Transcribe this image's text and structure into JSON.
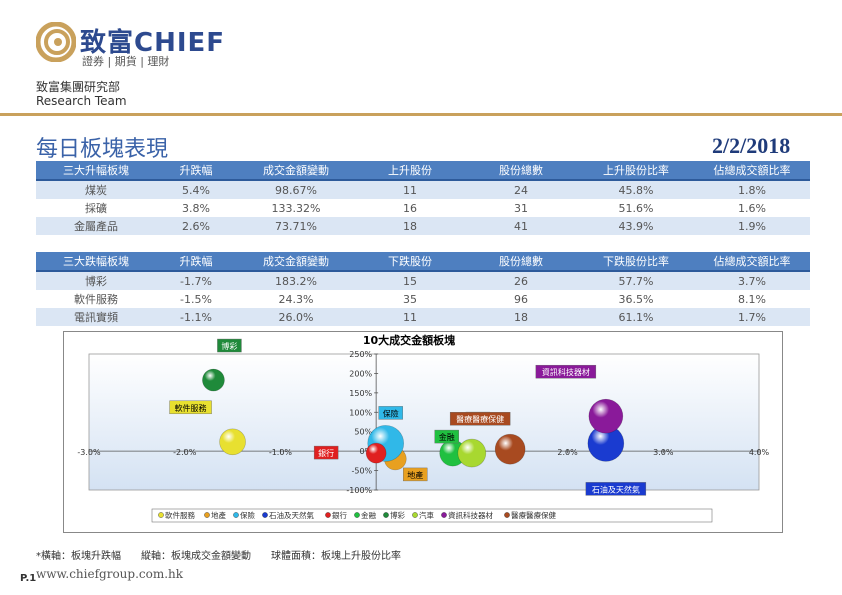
{
  "brand": {
    "name": "致富CHIEF",
    "sub": "證券 | 期貨 | 理財"
  },
  "dept": {
    "line1": "致富集團研究部",
    "line2": "Research Team"
  },
  "title": "每日板塊表現",
  "date": "2/2/2018",
  "gain_table": {
    "headers": [
      "三大升幅板塊",
      "升跌幅",
      "成交金額變動",
      "上升股份",
      "股份總數",
      "上升股份比率",
      "佔總成交額比率"
    ],
    "rows": [
      [
        "煤炭",
        "5.4%",
        "98.67%",
        "11",
        "24",
        "45.8%",
        "1.8%"
      ],
      [
        "採礦",
        "3.8%",
        "133.32%",
        "16",
        "31",
        "51.6%",
        "1.6%"
      ],
      [
        "金屬產品",
        "2.6%",
        "73.71%",
        "18",
        "41",
        "43.9%",
        "1.9%"
      ]
    ]
  },
  "loss_table": {
    "headers": [
      "三大跌幅板塊",
      "升跌幅",
      "成交金額變動",
      "下跌股份",
      "股份總數",
      "下跌股份比率",
      "佔總成交額比率"
    ],
    "rows": [
      [
        "博彩",
        "-1.7%",
        "183.2%",
        "15",
        "26",
        "57.7%",
        "3.7%"
      ],
      [
        "軟件服務",
        "-1.5%",
        "24.3%",
        "35",
        "96",
        "36.5%",
        "8.1%"
      ],
      [
        "電訊實頻",
        "-1.1%",
        "26.0%",
        "11",
        "18",
        "61.1%",
        "1.7%"
      ]
    ]
  },
  "chart_data": {
    "type": "scatter",
    "title": "10大成交金額板塊",
    "xlim": [
      -3,
      4
    ],
    "ylim": [
      -100,
      250
    ],
    "x_ticks": [
      "-3.0%",
      "-2.0%",
      "-1.0%",
      "0%",
      "1.0%",
      "2.0%",
      "3.0%",
      "4.0%"
    ],
    "y_ticks": [
      "-100%",
      "-50%",
      "0%",
      "50%",
      "100%",
      "150%",
      "200%",
      "250%"
    ],
    "series": [
      {
        "name": "軟件服務",
        "x": -1.5,
        "y": 24,
        "color": "#e8e030"
      },
      {
        "name": "地產",
        "x": 0.2,
        "y": -20,
        "color": "#e8a020"
      },
      {
        "name": "保險",
        "x": 0.1,
        "y": 20,
        "color": "#30b8e8"
      },
      {
        "name": "石油及天然氣",
        "x": 2.4,
        "y": 20,
        "color": "#1a3bd0"
      },
      {
        "name": "銀行",
        "x": 0.0,
        "y": -5,
        "color": "#e02020"
      },
      {
        "name": "金融",
        "x": 0.8,
        "y": -5,
        "color": "#20c040"
      },
      {
        "name": "博彩",
        "x": -1.7,
        "y": 183,
        "color": "#1f8a3a"
      },
      {
        "name": "汽車",
        "x": 1.0,
        "y": -5,
        "color": "#a8d830"
      },
      {
        "name": "資訊科技器材",
        "x": 2.4,
        "y": 90,
        "color": "#8a1a9a"
      },
      {
        "name": "醫療醫療保健",
        "x": 1.4,
        "y": 5,
        "color": "#a84a20"
      }
    ],
    "legend_position": "bottom"
  },
  "footnote": "*橫軸：板塊升跌幅　　縱軸：板塊成交金額變動　　球體面積：板塊上升股份比率",
  "page_no": "P.1",
  "website": "www.chiefgroup.com.hk"
}
